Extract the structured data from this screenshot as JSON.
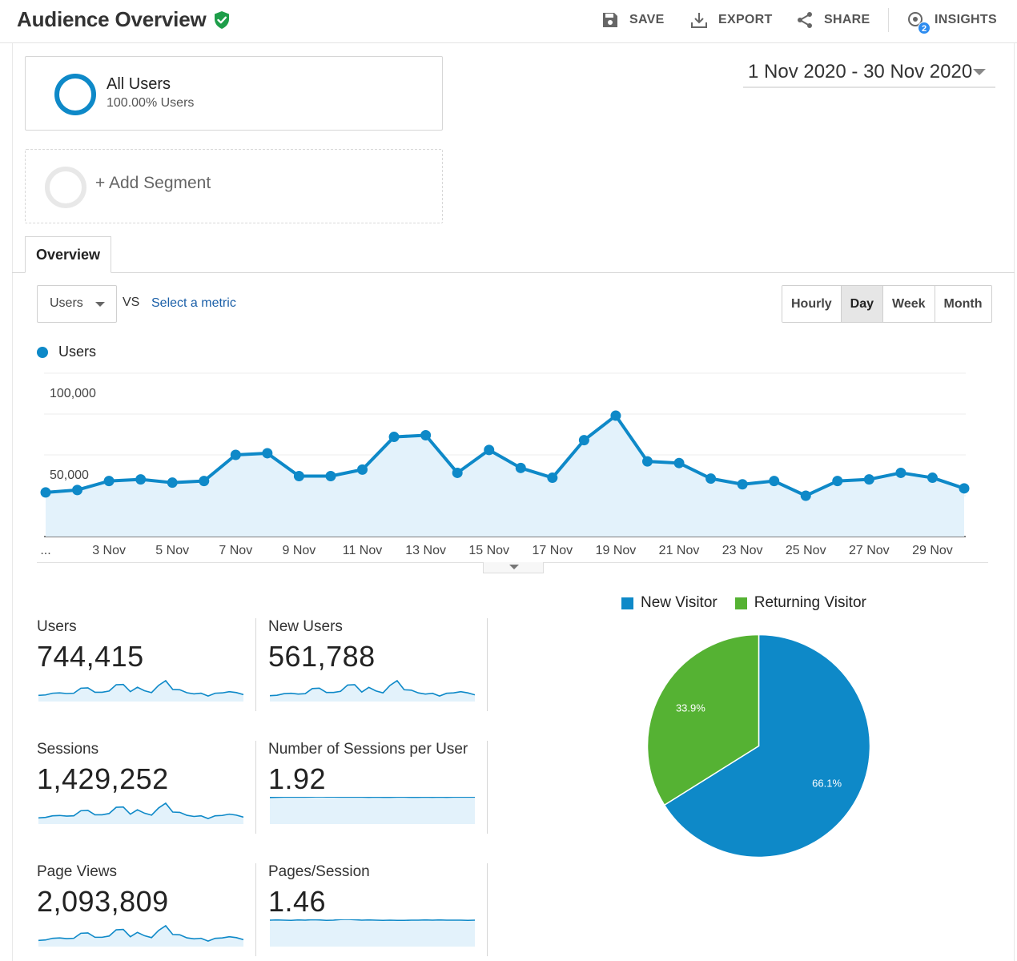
{
  "header": {
    "title": "Audience Overview",
    "actions": {
      "save": "SAVE",
      "export": "EXPORT",
      "share": "SHARE",
      "insights": "INSIGHTS",
      "insights_badge": "2"
    }
  },
  "segments": {
    "active": {
      "name": "All Users",
      "detail": "100.00% Users"
    },
    "add_label": "+ Add Segment"
  },
  "date_range": "1 Nov 2020 - 30 Nov 2020",
  "tabs": [
    {
      "label": "Overview",
      "active": true
    }
  ],
  "metric_picker": {
    "selected": "Users",
    "vs_label": "VS",
    "compare_placeholder": "Select a metric"
  },
  "granularity": {
    "options": [
      "Hourly",
      "Day",
      "Week",
      "Month"
    ],
    "selected": "Day"
  },
  "colors": {
    "primary": "#0e89c8",
    "area_fill": "#e3f2fb",
    "new_visitor": "#0e89c8",
    "returning_visitor": "#55b233",
    "verified": "#1e9e4a"
  },
  "chart_data": [
    {
      "type": "area",
      "legend": [
        "Users"
      ],
      "series": [
        {
          "name": "Users",
          "x": [
            "1 Nov",
            "2 Nov",
            "3 Nov",
            "4 Nov",
            "5 Nov",
            "6 Nov",
            "7 Nov",
            "8 Nov",
            "9 Nov",
            "10 Nov",
            "11 Nov",
            "12 Nov",
            "13 Nov",
            "14 Nov",
            "15 Nov",
            "16 Nov",
            "17 Nov",
            "18 Nov",
            "19 Nov",
            "20 Nov",
            "21 Nov",
            "22 Nov",
            "23 Nov",
            "24 Nov",
            "25 Nov",
            "26 Nov",
            "27 Nov",
            "28 Nov",
            "29 Nov",
            "30 Nov"
          ],
          "values": [
            27000,
            28500,
            34000,
            35000,
            33000,
            34000,
            50000,
            51000,
            37000,
            37000,
            41000,
            61000,
            62000,
            39000,
            53000,
            42000,
            36000,
            59000,
            74000,
            46000,
            45000,
            35500,
            32000,
            34000,
            25000,
            34000,
            35000,
            39000,
            36000,
            29500
          ]
        }
      ],
      "ylim": [
        0,
        100000
      ],
      "y_ticks": [
        "100,000",
        "50,000"
      ],
      "x_tick_labels": [
        "...",
        "3 Nov",
        "5 Nov",
        "7 Nov",
        "9 Nov",
        "11 Nov",
        "13 Nov",
        "15 Nov",
        "17 Nov",
        "19 Nov",
        "21 Nov",
        "23 Nov",
        "25 Nov",
        "27 Nov",
        "29 Nov"
      ],
      "grid": true
    },
    {
      "type": "pie",
      "legend_position": "top",
      "labels": [
        "New Visitor",
        "Returning Visitor"
      ],
      "values": [
        66.1,
        33.9
      ],
      "value_labels": [
        "66.1%",
        "33.9%"
      ]
    }
  ],
  "kpis": [
    {
      "label": "Users",
      "value": "744,415",
      "spark": [
        27,
        28.5,
        34,
        35,
        33,
        34,
        50,
        51,
        37,
        37,
        41,
        61,
        62,
        39,
        53,
        42,
        36,
        59,
        74,
        46,
        45,
        35.5,
        32,
        34,
        25,
        34,
        35,
        39,
        36,
        29.5
      ]
    },
    {
      "label": "New Users",
      "value": "561,788",
      "spark": [
        20,
        21,
        25,
        26,
        24,
        25,
        38,
        39,
        28,
        28,
        31,
        47,
        48,
        29,
        41,
        32,
        27,
        46,
        58,
        35,
        34,
        27,
        24,
        26,
        19,
        26,
        27,
        30,
        27,
        22
      ]
    },
    {
      "label": "Sessions",
      "value": "1,429,252",
      "spark": [
        52,
        55,
        65,
        67,
        63,
        65,
        96,
        98,
        71,
        71,
        79,
        117,
        119,
        75,
        102,
        81,
        69,
        113,
        142,
        88,
        86,
        68,
        61,
        65,
        48,
        65,
        67,
        75,
        69,
        57
      ]
    },
    {
      "label": "Number of Sessions per User",
      "value": "1.92",
      "spark": [
        1.9,
        1.91,
        1.92,
        1.93,
        1.92,
        1.92,
        1.93,
        1.94,
        1.93,
        1.93,
        1.92,
        1.93,
        1.92,
        1.92,
        1.91,
        1.92,
        1.91,
        1.91,
        1.92,
        1.92,
        1.91,
        1.91,
        1.92,
        1.91,
        1.92,
        1.91,
        1.92,
        1.92,
        1.92,
        1.92
      ]
    },
    {
      "label": "Page Views",
      "value": "2,093,809",
      "spark": [
        76,
        80,
        95,
        98,
        92,
        95,
        140,
        143,
        104,
        104,
        115,
        171,
        174,
        109,
        148,
        118,
        101,
        165,
        207,
        129,
        126,
        99,
        90,
        95,
        70,
        95,
        98,
        109,
        101,
        83
      ]
    },
    {
      "label": "Pages/Session",
      "value": "1.46",
      "spark": [
        1.46,
        1.47,
        1.46,
        1.45,
        1.47,
        1.46,
        1.48,
        1.47,
        1.45,
        1.46,
        1.49,
        1.5,
        1.48,
        1.46,
        1.47,
        1.46,
        1.45,
        1.46,
        1.45,
        1.45,
        1.46,
        1.46,
        1.47,
        1.46,
        1.47,
        1.46,
        1.46,
        1.46,
        1.45,
        1.46
      ]
    }
  ]
}
